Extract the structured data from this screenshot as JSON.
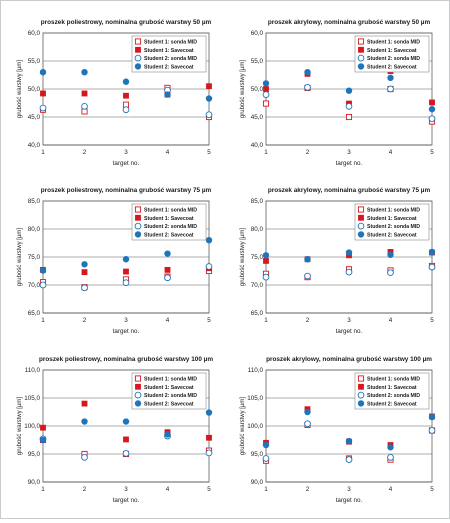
{
  "colors": {
    "red": "#d6171e",
    "blue": "#1f75b9",
    "outline": "#8a8a8a",
    "gridline": "#5f5f5f",
    "panel_bg": "#ffffff"
  },
  "markers": [
    {
      "style": "square-open",
      "color": "#d6171e"
    },
    {
      "style": "square-filled",
      "color": "#d6171e"
    },
    {
      "style": "circle-open",
      "color": "#1f75b9"
    },
    {
      "style": "circle-filled",
      "color": "#1f75b9"
    }
  ],
  "chart_data": [
    {
      "type": "scatter",
      "title": "proszek poliestrowy, nominalna grubość warstwy 50 µm",
      "xlabel": "target no.",
      "ylabel": "grubość warstwy [µm]",
      "x": [
        1,
        2,
        3,
        4,
        5
      ],
      "xticks": [
        "1",
        "2",
        "3",
        "4",
        "5"
      ],
      "ylim": [
        40,
        60
      ],
      "yticks": [
        "40,0",
        "45,0",
        "50,0",
        "55,0",
        "60,0"
      ],
      "legend_position": "top-right",
      "series": [
        {
          "name": "Student 1: sonda MID",
          "values": [
            46.3,
            46.0,
            47.2,
            50.2,
            45.0
          ]
        },
        {
          "name": "Student 1: Savecoat",
          "values": [
            49.2,
            49.2,
            48.8,
            49.0,
            50.5
          ]
        },
        {
          "name": "Student 2: sonda MID",
          "values": [
            46.6,
            46.9,
            46.3,
            49.8,
            45.4
          ]
        },
        {
          "name": "Student 2: Savecoat",
          "values": [
            53.0,
            53.0,
            51.3,
            49.0,
            48.3
          ]
        }
      ]
    },
    {
      "type": "scatter",
      "title": "proszek akrylowy, nominalna grubość warstwy 50 µm",
      "xlabel": "target no.",
      "ylabel": "grubość warstwy [µm]",
      "x": [
        1,
        2,
        3,
        4,
        5
      ],
      "xticks": [
        "1",
        "2",
        "3",
        "4",
        "5"
      ],
      "ylim": [
        40,
        60
      ],
      "yticks": [
        "40,0",
        "45,0",
        "50,0",
        "55,0",
        "60,0"
      ],
      "legend_position": "top-right",
      "series": [
        {
          "name": "Student 1: sonda MID",
          "values": [
            47.4,
            50.2,
            45.0,
            50.0,
            44.2
          ]
        },
        {
          "name": "Student 1: Savecoat",
          "values": [
            50.0,
            52.7,
            47.4,
            53.2,
            47.6
          ]
        },
        {
          "name": "Student 2: sonda MID",
          "values": [
            49.0,
            50.3,
            46.9,
            50.0,
            44.7
          ]
        },
        {
          "name": "Student 2: Savecoat",
          "values": [
            51.0,
            53.0,
            49.7,
            52.0,
            46.4
          ]
        }
      ]
    },
    {
      "type": "scatter",
      "title": "proszek poliestrowy, nominalna grubość warstwy 75 µm",
      "xlabel": "target no.",
      "ylabel": "grubość warstwy [µm]",
      "x": [
        1,
        2,
        3,
        4,
        5
      ],
      "xticks": [
        "1",
        "2",
        "3",
        "4",
        "5"
      ],
      "ylim": [
        65,
        85
      ],
      "yticks": [
        "65,0",
        "70,0",
        "75,0",
        "80,0",
        "85,0"
      ],
      "legend_position": "top-right",
      "series": [
        {
          "name": "Student 1: sonda MID",
          "values": [
            70.5,
            69.6,
            71.0,
            71.5,
            72.5
          ]
        },
        {
          "name": "Student 1: Savecoat",
          "values": [
            72.7,
            72.3,
            72.4,
            72.7,
            73.0
          ]
        },
        {
          "name": "Student 2: sonda MID",
          "values": [
            70.0,
            69.5,
            70.4,
            71.3,
            73.3
          ]
        },
        {
          "name": "Student 2: Savecoat",
          "values": [
            72.6,
            73.7,
            74.6,
            75.6,
            78.0
          ]
        }
      ]
    },
    {
      "type": "scatter",
      "title": "proszek akrylowy, nominalna grubość warstwy 75 µm",
      "xlabel": "target no.",
      "ylabel": "grubość warstwy [µm]",
      "x": [
        1,
        2,
        3,
        4,
        5
      ],
      "xticks": [
        "1",
        "2",
        "3",
        "4",
        "5"
      ],
      "ylim": [
        65,
        85
      ],
      "yticks": [
        "65,0",
        "70,0",
        "75,0",
        "80,0",
        "85,0"
      ],
      "legend_position": "top-right",
      "series": [
        {
          "name": "Student 1: sonda MID",
          "values": [
            72.0,
            71.4,
            72.8,
            72.6,
            73.4
          ]
        },
        {
          "name": "Student 1: Savecoat",
          "values": [
            74.3,
            74.6,
            75.3,
            75.9,
            75.8
          ]
        },
        {
          "name": "Student 2: sonda MID",
          "values": [
            71.4,
            71.6,
            72.3,
            72.2,
            73.2
          ]
        },
        {
          "name": "Student 2: Savecoat",
          "values": [
            75.3,
            74.6,
            75.8,
            75.4,
            75.9
          ]
        }
      ]
    },
    {
      "type": "scatter",
      "title": "proszek poliestrowy, nominalna grubość warstwy 100 µm",
      "xlabel": "target no.",
      "ylabel": "grubość warstwy [µm]",
      "x": [
        1,
        2,
        3,
        4,
        5
      ],
      "xticks": [
        "1",
        "2",
        "3",
        "4",
        "5"
      ],
      "ylim": [
        90,
        110
      ],
      "yticks": [
        "90,0",
        "95,0",
        "100,0",
        "105,0",
        "110,0"
      ],
      "legend_position": "top-right",
      "series": [
        {
          "name": "Student 1: sonda MID",
          "values": [
            97.5,
            95.0,
            95.0,
            98.5,
            95.6
          ]
        },
        {
          "name": "Student 1: Savecoat",
          "values": [
            99.7,
            104.0,
            97.6,
            98.9,
            97.9
          ]
        },
        {
          "name": "Student 2: sonda MID",
          "values": [
            97.7,
            94.4,
            95.1,
            98.2,
            95.2
          ]
        },
        {
          "name": "Student 2: Savecoat",
          "values": [
            97.5,
            100.8,
            100.8,
            98.5,
            102.4
          ]
        }
      ]
    },
    {
      "type": "scatter",
      "title": "proszek akrylowy, nominalna grubość warstwy 100 µm",
      "xlabel": "target no.",
      "ylabel": "grubość warstwy [µm]",
      "x": [
        1,
        2,
        3,
        4,
        5
      ],
      "xticks": [
        "1",
        "2",
        "3",
        "4",
        "5"
      ],
      "ylim": [
        90,
        110
      ],
      "yticks": [
        "90,0",
        "95,0",
        "100,0",
        "105,0",
        "110,0"
      ],
      "legend_position": "top-right",
      "series": [
        {
          "name": "Student 1: sonda MID",
          "values": [
            93.8,
            100.2,
            94.2,
            94.0,
            99.2
          ]
        },
        {
          "name": "Student 1: Savecoat",
          "values": [
            97.0,
            103.0,
            97.2,
            96.6,
            101.7
          ]
        },
        {
          "name": "Student 2: sonda MID",
          "values": [
            94.2,
            100.4,
            94.0,
            94.4,
            99.2
          ]
        },
        {
          "name": "Student 2: Savecoat",
          "values": [
            96.6,
            102.5,
            97.3,
            96.2,
            101.6
          ]
        }
      ]
    }
  ]
}
